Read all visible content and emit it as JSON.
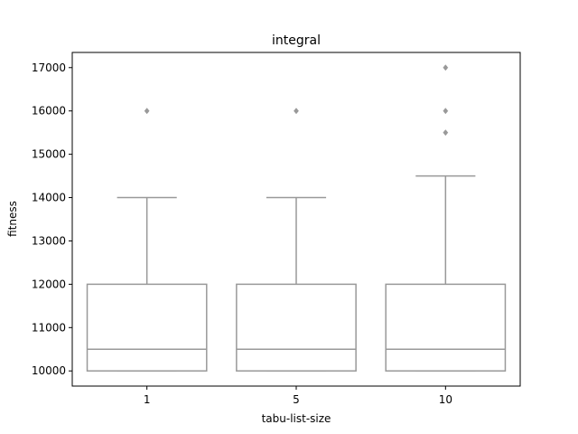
{
  "chart_data": {
    "type": "box",
    "title": "integral",
    "xlabel": "tabu-list-size",
    "ylabel": "fitness",
    "categories": [
      "1",
      "5",
      "10"
    ],
    "ylim": [
      9650,
      17350
    ],
    "yticks": [
      10000,
      11000,
      12000,
      13000,
      14000,
      15000,
      16000,
      17000
    ],
    "ytick_labels": [
      "10000",
      "11000",
      "12000",
      "13000",
      "14000",
      "15000",
      "16000",
      "17000"
    ],
    "boxes": [
      {
        "category": "1",
        "whisker_low": 10000,
        "q1": 10000,
        "median": 10500,
        "q3": 12000,
        "whisker_high": 14000,
        "outliers": [
          16000
        ]
      },
      {
        "category": "5",
        "whisker_low": 10000,
        "q1": 10000,
        "median": 10500,
        "q3": 12000,
        "whisker_high": 14000,
        "outliers": [
          16000
        ]
      },
      {
        "category": "10",
        "whisker_low": 10000,
        "q1": 10000,
        "median": 10500,
        "q3": 12000,
        "whisker_high": 14500,
        "outliers": [
          15500,
          16000,
          17000
        ]
      }
    ],
    "grid": false,
    "colors": {
      "box": "#999999",
      "outlier": "#999999",
      "axes": "#000000"
    }
  }
}
